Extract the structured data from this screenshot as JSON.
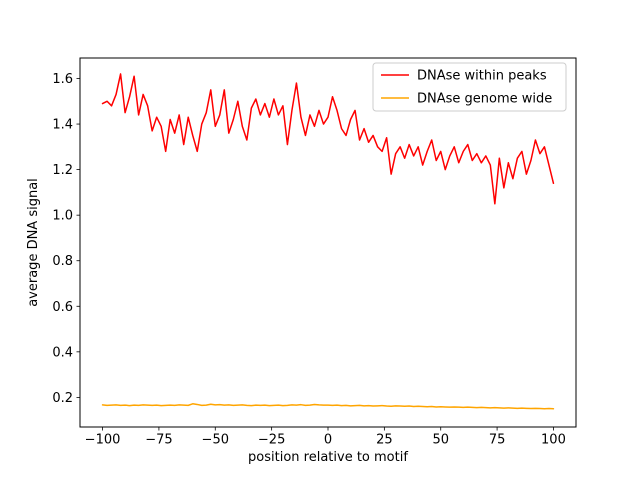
{
  "figure": {
    "background": "#ffffff"
  },
  "chart_data": {
    "type": "line",
    "title": "",
    "xlabel": "position relative to motif",
    "ylabel": "average DNA signal",
    "xlim": [
      -110,
      110
    ],
    "ylim": [
      0.07,
      1.69
    ],
    "grid": false,
    "legend": {
      "position": "upper right",
      "border_color": "#cccccc",
      "background": "#ffffff"
    },
    "x_ticks": [
      {
        "value": -100,
        "label": "−100"
      },
      {
        "value": -75,
        "label": "−75"
      },
      {
        "value": -50,
        "label": "−50"
      },
      {
        "value": -25,
        "label": "−25"
      },
      {
        "value": 0,
        "label": "0"
      },
      {
        "value": 25,
        "label": "25"
      },
      {
        "value": 50,
        "label": "50"
      },
      {
        "value": 75,
        "label": "75"
      },
      {
        "value": 100,
        "label": "100"
      }
    ],
    "y_ticks": [
      {
        "value": 0.2,
        "label": "0.2"
      },
      {
        "value": 0.4,
        "label": "0.4"
      },
      {
        "value": 0.6,
        "label": "0.6"
      },
      {
        "value": 0.8,
        "label": "0.8"
      },
      {
        "value": 1.0,
        "label": "1.0"
      },
      {
        "value": 1.2,
        "label": "1.2"
      },
      {
        "value": 1.4,
        "label": "1.4"
      },
      {
        "value": 1.6,
        "label": "1.6"
      }
    ],
    "x_start": -100,
    "x_step": 2,
    "series": [
      {
        "name": "DNAse within peaks",
        "color": "#ff0000",
        "linewidth": 1.5,
        "values": [
          1.49,
          1.5,
          1.48,
          1.53,
          1.62,
          1.45,
          1.52,
          1.61,
          1.44,
          1.53,
          1.48,
          1.37,
          1.43,
          1.39,
          1.28,
          1.42,
          1.36,
          1.44,
          1.31,
          1.43,
          1.35,
          1.28,
          1.4,
          1.45,
          1.55,
          1.39,
          1.44,
          1.55,
          1.36,
          1.42,
          1.5,
          1.39,
          1.33,
          1.47,
          1.51,
          1.44,
          1.49,
          1.43,
          1.51,
          1.44,
          1.48,
          1.31,
          1.46,
          1.58,
          1.43,
          1.35,
          1.44,
          1.39,
          1.46,
          1.4,
          1.43,
          1.52,
          1.46,
          1.38,
          1.35,
          1.42,
          1.46,
          1.33,
          1.38,
          1.32,
          1.35,
          1.3,
          1.28,
          1.34,
          1.18,
          1.27,
          1.3,
          1.25,
          1.31,
          1.26,
          1.3,
          1.22,
          1.28,
          1.33,
          1.24,
          1.28,
          1.2,
          1.26,
          1.3,
          1.23,
          1.28,
          1.31,
          1.24,
          1.27,
          1.23,
          1.26,
          1.22,
          1.05,
          1.25,
          1.12,
          1.23,
          1.16,
          1.25,
          1.28,
          1.18,
          1.24,
          1.33,
          1.27,
          1.3,
          1.22,
          1.14
        ]
      },
      {
        "name": "DNAse genome wide",
        "color": "#ffa500",
        "linewidth": 1.5,
        "values": [
          0.167,
          0.165,
          0.166,
          0.167,
          0.165,
          0.166,
          0.164,
          0.166,
          0.165,
          0.167,
          0.166,
          0.165,
          0.166,
          0.164,
          0.165,
          0.166,
          0.165,
          0.167,
          0.166,
          0.165,
          0.172,
          0.169,
          0.165,
          0.166,
          0.17,
          0.167,
          0.168,
          0.166,
          0.167,
          0.165,
          0.166,
          0.167,
          0.165,
          0.164,
          0.166,
          0.165,
          0.166,
          0.164,
          0.165,
          0.166,
          0.164,
          0.165,
          0.167,
          0.166,
          0.168,
          0.165,
          0.166,
          0.169,
          0.167,
          0.166,
          0.166,
          0.165,
          0.166,
          0.164,
          0.165,
          0.163,
          0.164,
          0.165,
          0.163,
          0.164,
          0.162,
          0.163,
          0.164,
          0.162,
          0.161,
          0.163,
          0.162,
          0.161,
          0.162,
          0.16,
          0.161,
          0.16,
          0.159,
          0.16,
          0.158,
          0.159,
          0.158,
          0.157,
          0.158,
          0.157,
          0.156,
          0.157,
          0.156,
          0.155,
          0.156,
          0.155,
          0.154,
          0.155,
          0.154,
          0.153,
          0.154,
          0.153,
          0.152,
          0.153,
          0.152,
          0.151,
          0.152,
          0.151,
          0.15,
          0.151,
          0.15
        ]
      }
    ]
  }
}
